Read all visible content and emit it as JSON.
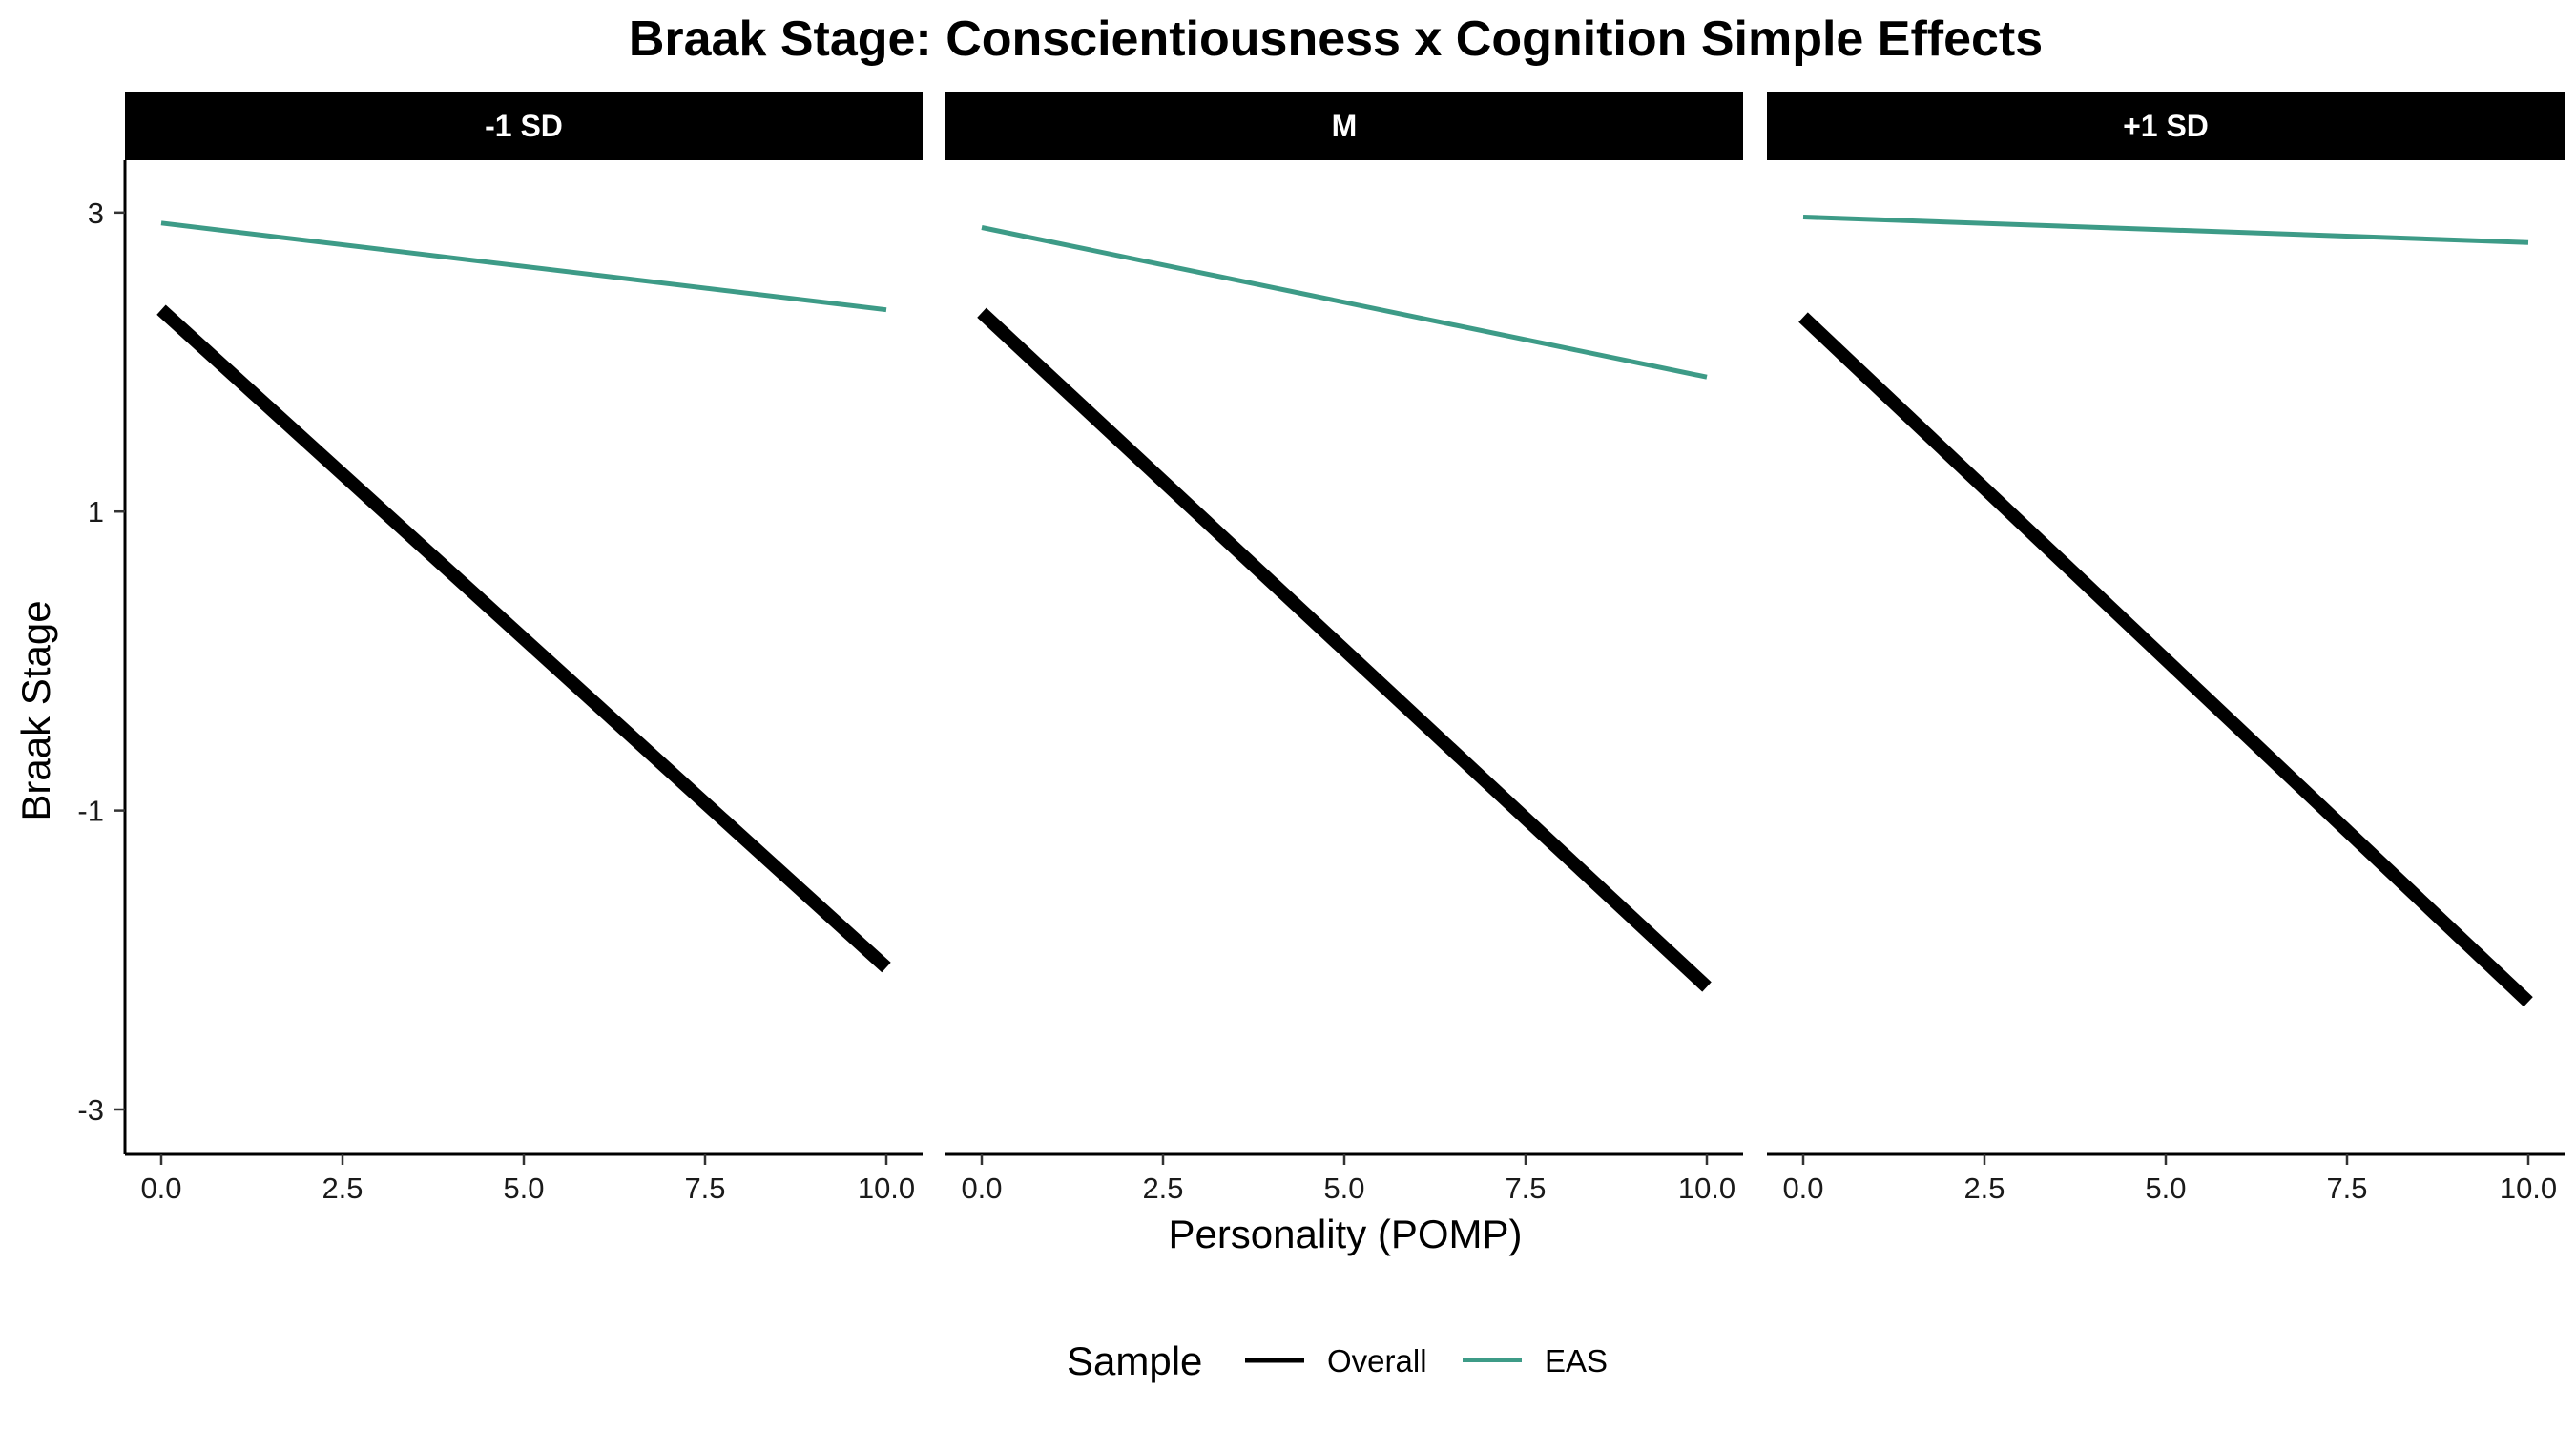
{
  "chart_data": {
    "type": "line",
    "title": "Braak Stage: Conscientiousness x Cognition Simple Effects",
    "xlabel": "Personality (POMP)",
    "ylabel": "Braak Stage",
    "xlim": [
      -0.5,
      10.5
    ],
    "ylim": [
      -3.3,
      3.35
    ],
    "x_ticks": [
      0.0,
      2.5,
      5.0,
      7.5,
      10.0
    ],
    "x_tick_labels": [
      "0.0",
      "2.5",
      "5.0",
      "7.5",
      "10.0"
    ],
    "y_ticks": [
      3,
      1,
      -1,
      -3
    ],
    "y_tick_labels": [
      "3",
      "1",
      "-1",
      "-3"
    ],
    "grid": false,
    "legend": {
      "title": "Sample",
      "position": "bottom",
      "entries": [
        {
          "label": "Overall",
          "color": "#000000"
        },
        {
          "label": "EAS",
          "color": "#3d9b87"
        }
      ]
    },
    "panels": [
      {
        "label": "-1 SD",
        "series": [
          {
            "name": "Overall",
            "color": "#000000",
            "x": [
              0,
              10
            ],
            "y": [
              2.35,
              -2.05
            ]
          },
          {
            "name": "EAS",
            "color": "#3d9b87",
            "x": [
              0,
              10
            ],
            "y": [
              2.93,
              2.35
            ]
          }
        ]
      },
      {
        "label": "M",
        "series": [
          {
            "name": "Overall",
            "color": "#000000",
            "x": [
              0,
              10
            ],
            "y": [
              2.33,
              -2.18
            ]
          },
          {
            "name": "EAS",
            "color": "#3d9b87",
            "x": [
              0,
              10
            ],
            "y": [
              2.9,
              1.9
            ]
          }
        ]
      },
      {
        "label": "+1 SD",
        "series": [
          {
            "name": "Overall",
            "color": "#000000",
            "x": [
              0,
              10
            ],
            "y": [
              2.3,
              -2.28
            ]
          },
          {
            "name": "EAS",
            "color": "#3d9b87",
            "x": [
              0,
              10
            ],
            "y": [
              2.97,
              2.8
            ]
          }
        ]
      }
    ]
  }
}
